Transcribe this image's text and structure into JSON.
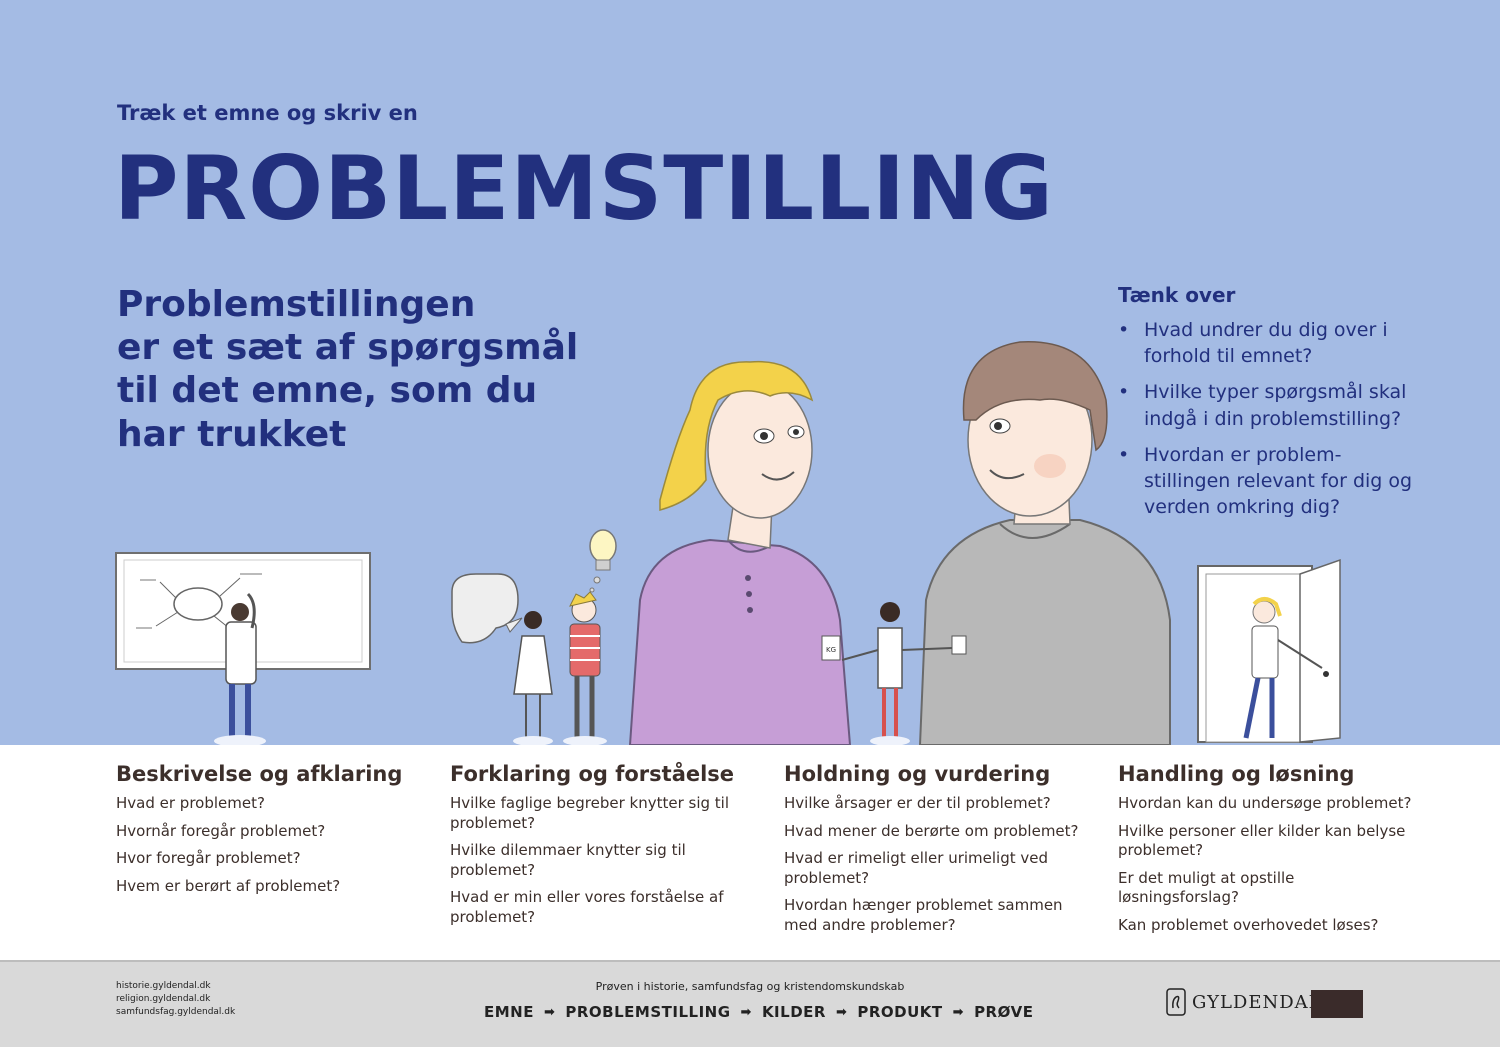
{
  "header": {
    "kicker": "Træk et emne og skriv en",
    "title": "PROBLEMSTILLING"
  },
  "lead": {
    "line1": "Problemstillingen",
    "line2": "er et sæt af spørgsmål",
    "line3": "til det emne, som du",
    "line4": "har trukket"
  },
  "think": {
    "title": "Tænk over",
    "items": [
      "Hvad undrer du dig over i forhold til emnet?",
      "Hvilke typer spørgsmål skal indgå i din problemstilling?",
      "Hvordan er problem-stillingen relevant for dig og verden omkring dig?"
    ]
  },
  "columns": [
    {
      "title": "Beskrivelse og afklaring",
      "items": [
        "Hvad er problemet?",
        "Hvornår foregår problemet?",
        "Hvor foregår problemet?",
        "Hvem er berørt af problemet?"
      ]
    },
    {
      "title": "Forklaring og forståelse",
      "items": [
        "Hvilke faglige begreber knytter sig til problemet?",
        "Hvilke dilemmaer knytter sig til problemet?",
        "Hvad er min eller vores forståelse af problemet?"
      ]
    },
    {
      "title": "Holdning og vurdering",
      "items": [
        "Hvilke årsager er der til problemet?",
        "Hvad mener de berørte om problemet?",
        "Hvad er rimeligt eller urimeligt ved problemet?",
        "Hvordan hænger problemet sammen med andre problemer?"
      ]
    },
    {
      "title": "Handling og løsning",
      "items": [
        "Hvordan kan du undersøge problemet?",
        "Hvilke personer eller kilder kan belyse problemet?",
        "Er det muligt at opstille løsningsforslag?",
        "Kan problemet overhovedet løses?"
      ]
    }
  ],
  "footer": {
    "links": [
      "historie.gyldendal.dk",
      "religion.gyldendal.dk",
      "samfundsfag.gyldendal.dk"
    ],
    "caption": "Prøven i historie, samfundsfag og kristendomskundskab",
    "flow": [
      "EMNE",
      "PROBLEMSTILLING",
      "KILDER",
      "PRODUKT",
      "PRØVE"
    ],
    "brand": "GYLDENDAL"
  },
  "colors": {
    "background": "#a4bbe4",
    "heading": "#22307e",
    "body_text": "#3c2f2b",
    "footer": "#d9d9d9"
  }
}
